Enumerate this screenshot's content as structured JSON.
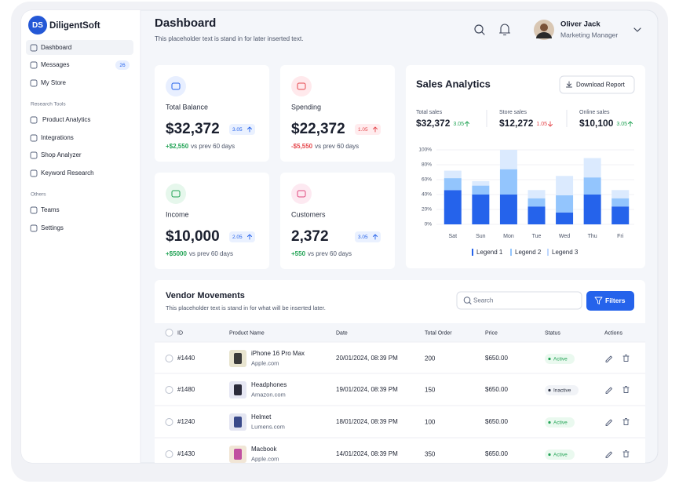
{
  "sidebar": {
    "logo_text": "DS",
    "brand": "DiligentSoft",
    "main_nav": [
      {
        "label": "Dashboard"
      },
      {
        "label": "Messages",
        "badge": "26"
      },
      {
        "label": "My Store"
      }
    ],
    "research_heading": "Research Tools",
    "research_nav": [
      "Product Analytics",
      "Integrations",
      "Shop Analyzer",
      "Keyword Research"
    ],
    "others_heading": "Others",
    "others_nav": [
      "Teams",
      "Settings"
    ]
  },
  "header": {
    "title": "Dashboard",
    "subtitle": "This placeholder text is stand in for later inserted text.",
    "user_name": "Oliver Jack",
    "user_role": "Marketing Manager"
  },
  "cards": [
    {
      "label": "Total Balance",
      "value": "$32,372",
      "badge": "3.05",
      "trend": "up",
      "delta": "+$2,550",
      "delta_note": "vs prev 60 days"
    },
    {
      "label": "Spending",
      "value": "$22,372",
      "badge": "1.05",
      "trend": "up-negative",
      "delta": "-$5,550",
      "delta_note": "vs prev 60 days"
    },
    {
      "label": "Income",
      "value": "$10,000",
      "badge": "2.05",
      "trend": "up",
      "delta": "+$5000",
      "delta_note": "vs prev 60 days"
    },
    {
      "label": "Customers",
      "value": "2,372",
      "badge": "3.05",
      "trend": "up",
      "delta": "+550",
      "delta_note": "vs prev 60 days"
    }
  ],
  "sales_analytics": {
    "title": "Sales Analytics",
    "button": "Download Report",
    "stats": [
      {
        "label": "Total sales",
        "value": "$32,372",
        "change": "3.05",
        "trend": "up"
      },
      {
        "label": "Store sales",
        "value": "$12,272",
        "change": "1.05",
        "trend": "down"
      },
      {
        "label": "Online sales",
        "value": "$10,100",
        "change": "3.05",
        "trend": "up"
      }
    ],
    "chart": {
      "type": "bar",
      "stacked": true,
      "categories": [
        "Sat",
        "Sun",
        "Mon",
        "Tue",
        "Wed",
        "Thu",
        "Fri"
      ],
      "series": [
        {
          "name": "Legend 1",
          "color": "#2563eb",
          "values": [
            46,
            40,
            40,
            24,
            16,
            40,
            24
          ]
        },
        {
          "name": "Legend 2",
          "color": "#93c5fd",
          "values": [
            16,
            12,
            34,
            11,
            23,
            23,
            11
          ]
        },
        {
          "name": "Legend 3",
          "color": "#dbeafe",
          "values": [
            10,
            6,
            26,
            11,
            26,
            26,
            11
          ]
        }
      ],
      "ylim": [
        0,
        100
      ],
      "yticks": [
        {
          "value": 0,
          "label": "0%"
        },
        {
          "value": 20,
          "label": "20%"
        },
        {
          "value": 40,
          "label": "40%"
        },
        {
          "value": 60,
          "label": "60%"
        },
        {
          "value": 80,
          "label": "80%"
        },
        {
          "value": 100,
          "label": "100%"
        }
      ],
      "grid": true
    }
  },
  "vendors": {
    "title": "Vendor Movements",
    "subtitle": "This placeholder text is stand in for what will be inserted later.",
    "search_placeholder": "Search",
    "filter_button": "Filters",
    "columns": [
      "ID",
      "Product Name",
      "Date",
      "Total Order",
      "Price",
      "Status",
      "Actions"
    ],
    "rows": [
      {
        "id": "#1440",
        "product": "iPhone 16 Pro Max",
        "site": "Apple.com",
        "date": "20/01/2024, 08:39 PM",
        "orders": "200",
        "price": "$650.00",
        "status": "Active"
      },
      {
        "id": "#1480",
        "product": "Headphones",
        "site": "Amazon.com",
        "date": "19/01/2024, 08:39 PM",
        "orders": "150",
        "price": "$650.00",
        "status": "Inactive"
      },
      {
        "id": "#1240",
        "product": "Helmet",
        "site": "Lumens.com",
        "date": "18/01/2024, 08:39 PM",
        "orders": "100",
        "price": "$650.00",
        "status": "Active"
      },
      {
        "id": "#1430",
        "product": "Macbook",
        "site": "Apple.com",
        "date": "14/01/2024, 08:39 PM",
        "orders": "350",
        "price": "$650.00",
        "status": "Active"
      }
    ]
  }
}
